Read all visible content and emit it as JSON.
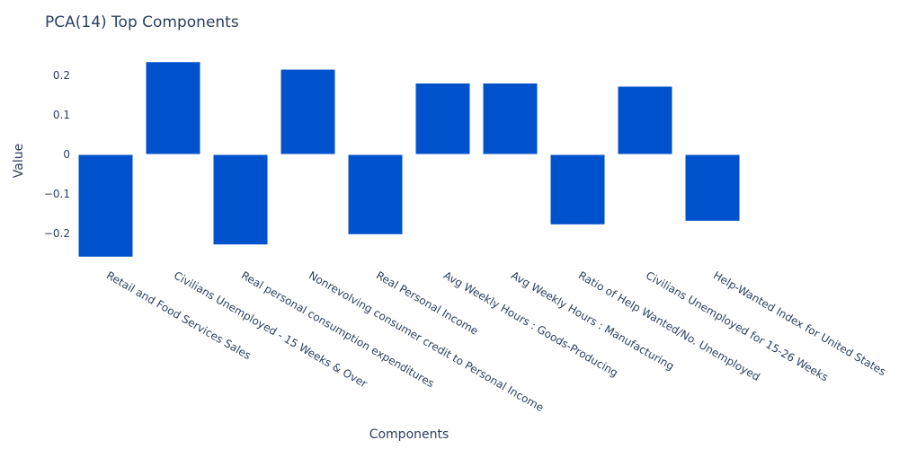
{
  "chart_data": {
    "type": "bar",
    "title": "PCA(14) Top Components",
    "xlabel": "Components",
    "ylabel": "Value",
    "categories": [
      "Retail and Food Services Sales",
      "Civilians Unemployed - 15 Weeks & Over",
      "Real personal consumption expenditures",
      "Nonrevolving consumer credit to Personal Income",
      "Real Personal Income",
      "Avg Weekly Hours : Goods-Producing",
      "Avg Weekly Hours : Manufacturing",
      "Ratio of Help Wanted/No. Unemployed",
      "Civilians Unemployed for 15-26 Weeks",
      "Help-Wanted Index for United States"
    ],
    "values": [
      -0.259,
      0.234,
      -0.228,
      0.215,
      -0.202,
      0.18,
      0.18,
      -0.177,
      0.172,
      -0.168
    ],
    "ylim": [
      -0.264,
      0.255
    ],
    "yticks": [
      0.2,
      0.1,
      0,
      -0.1,
      -0.2
    ],
    "ytick_labels": [
      "0.2",
      "0.1",
      "0",
      "−0.1",
      "−0.2"
    ],
    "grid": false,
    "colors": {
      "bar": "#0052cc",
      "text": "#2a3f5f",
      "background": "#ffffff"
    }
  }
}
